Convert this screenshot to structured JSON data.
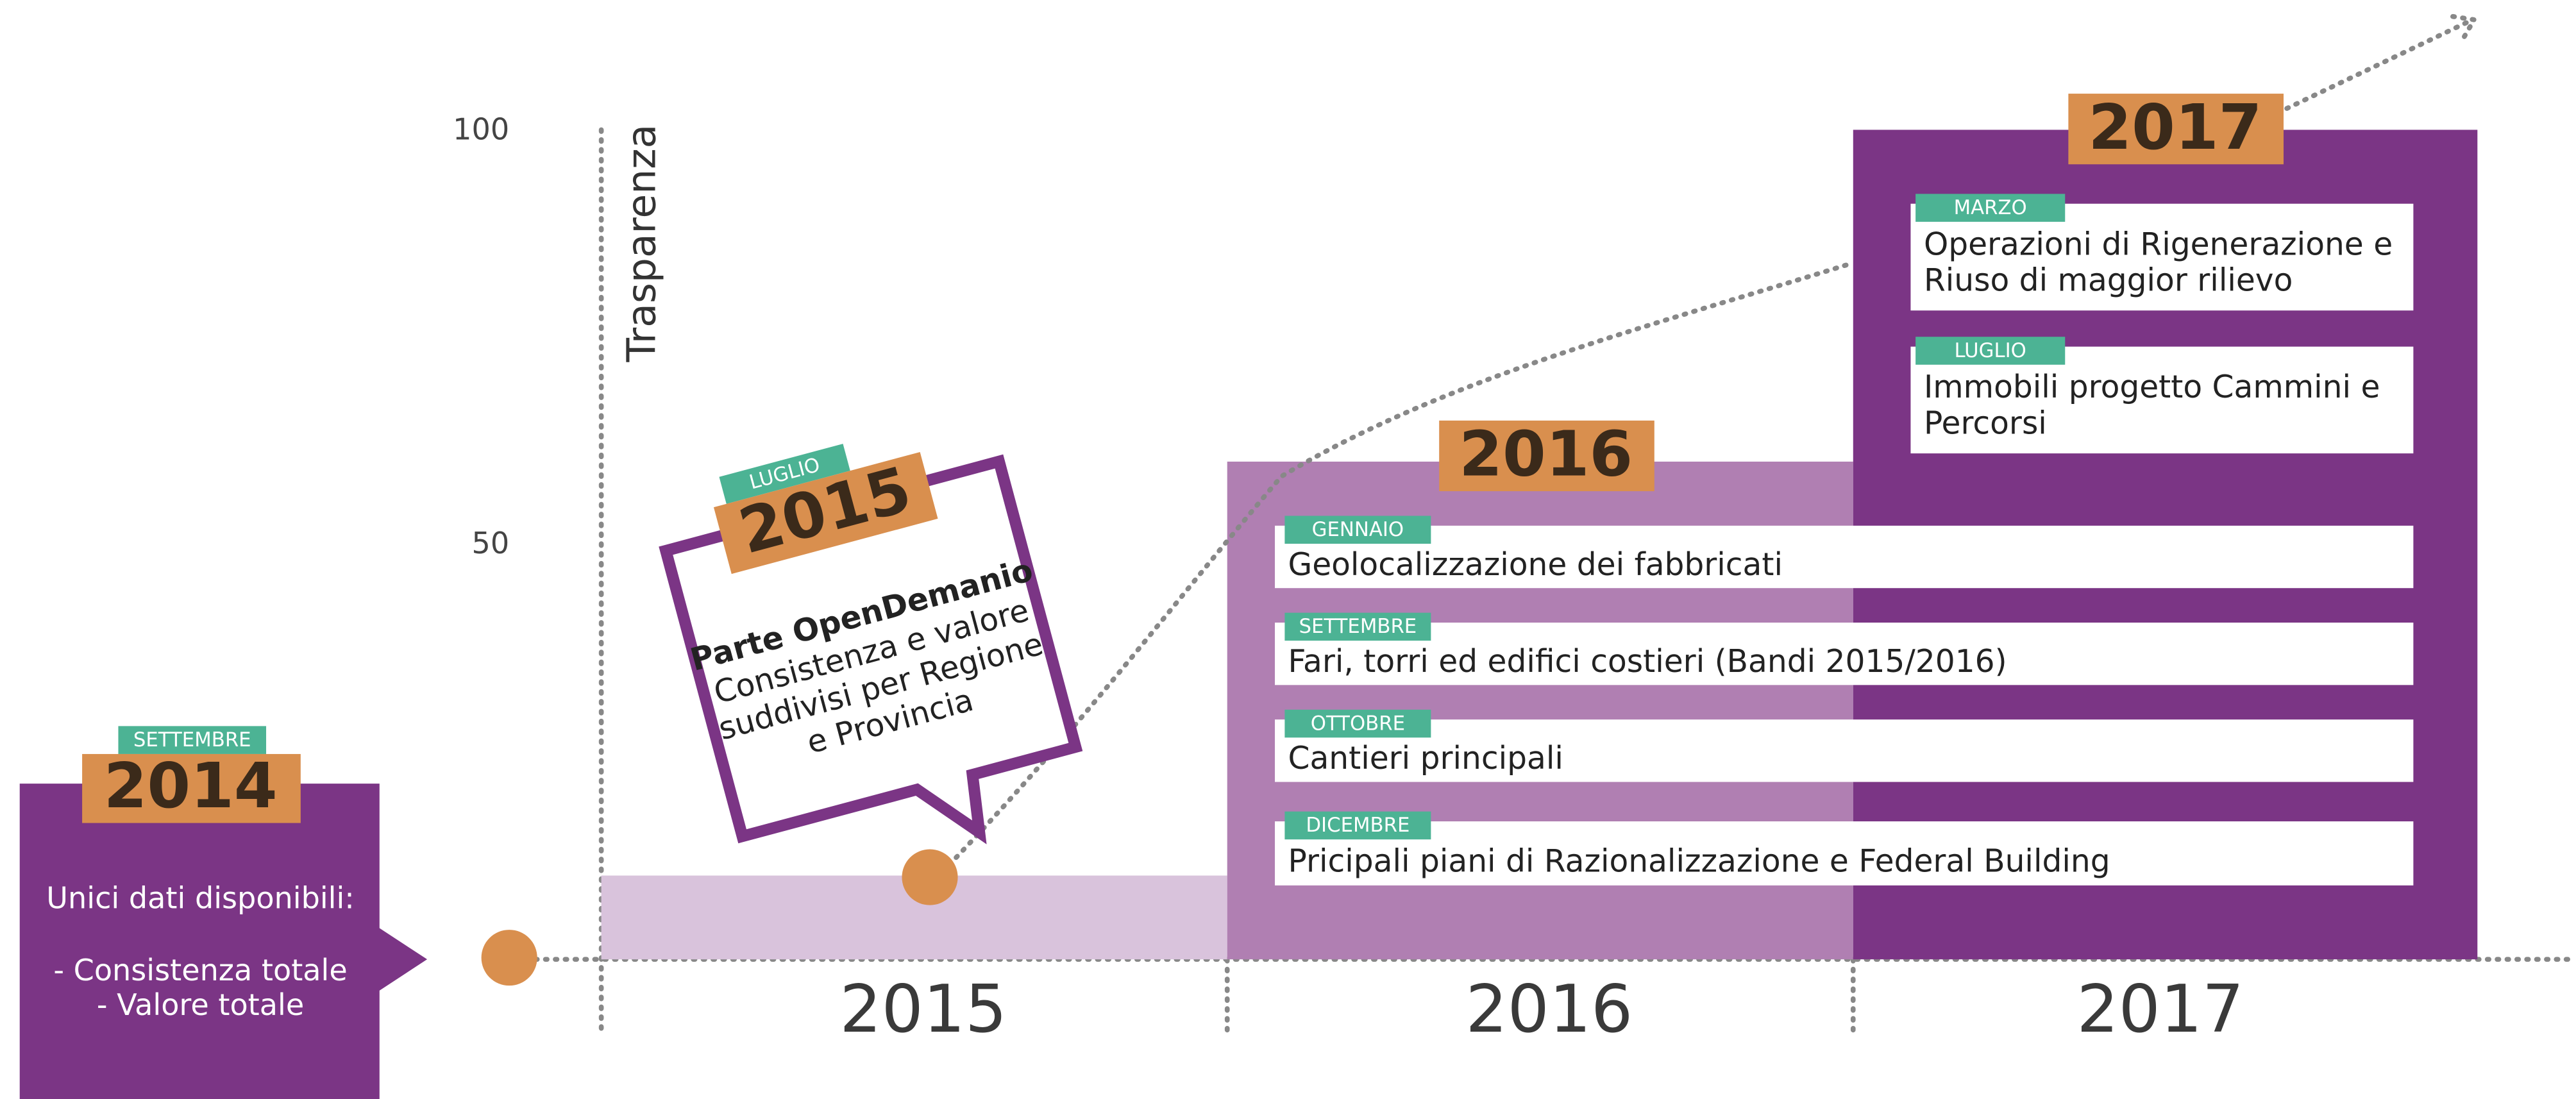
{
  "axis": {
    "label": "Trasparenza",
    "ticks": [
      "100",
      "50"
    ],
    "years": [
      "2015",
      "2016",
      "2017"
    ]
  },
  "events": [
    {
      "month": "SETTEMBRE",
      "year": "2014",
      "lines": [
        "Unici dati disponibili:",
        "- Consistenza totale",
        "- Valore totale"
      ]
    },
    {
      "month": "LUGLIO",
      "year": "2015",
      "title": "Parte OpenDemanio",
      "lines": [
        "Consistenza e valore",
        "suddivisi per Regione",
        "e Provincia"
      ]
    },
    {
      "year": "2016",
      "items": [
        {
          "month": "GENNAIO",
          "lines": [
            "Geolocalizzazione  dei fabbricati"
          ]
        },
        {
          "month": "SETTEMBRE",
          "lines": [
            "Fari, torri ed edifici costieri (Bandi 2015/2016)"
          ]
        },
        {
          "month": "OTTOBRE",
          "lines": [
            "Cantieri principali"
          ]
        },
        {
          "month": "DICEMBRE",
          "lines": [
            "Pricipali piani di Razionalizzazione e Federal Building"
          ]
        }
      ]
    },
    {
      "year": "2017",
      "items": [
        {
          "month": "MARZO",
          "lines": [
            "Operazioni di Rigenerazione e",
            "Riuso di maggior rilievo"
          ]
        },
        {
          "month": "LUGLIO",
          "lines": [
            "Immobili progetto Cammini e",
            "Percorsi"
          ]
        }
      ]
    }
  ]
}
